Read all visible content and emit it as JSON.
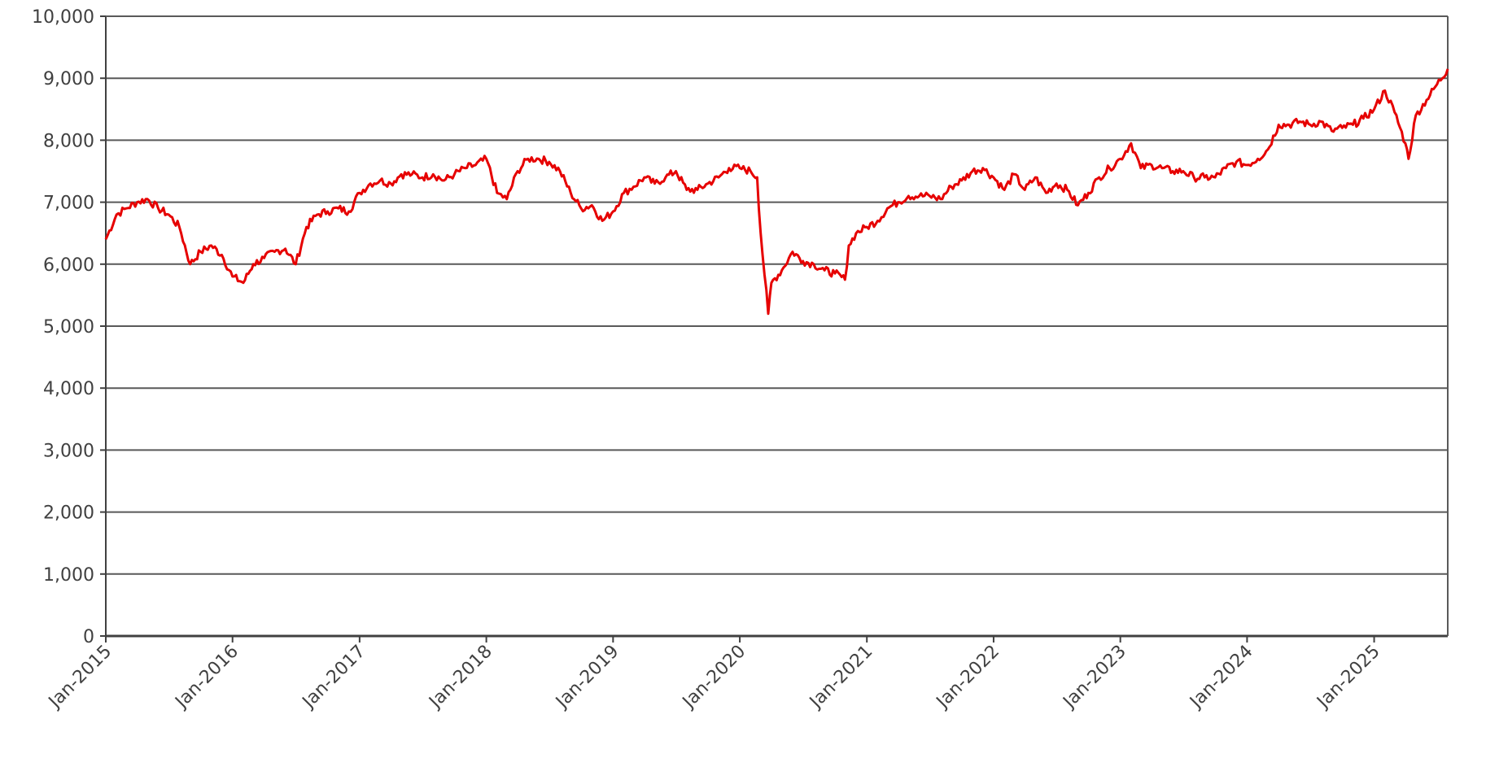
{
  "chart_data": {
    "type": "line",
    "title": "",
    "xlabel": "",
    "ylabel": "",
    "ylim": [
      0,
      10000
    ],
    "xlim": [
      "2015-01-01",
      "2025-08-01"
    ],
    "grid": "horizontal",
    "legend": "none",
    "colors": {
      "line": "#e60000",
      "grid": "#595959",
      "axis": "#404040",
      "text": "#404040"
    },
    "yticks": [
      0,
      1000,
      2000,
      3000,
      4000,
      5000,
      6000,
      7000,
      8000,
      9000,
      10000
    ],
    "ytick_labels": [
      "0",
      "1,000",
      "2,000",
      "3,000",
      "4,000",
      "5,000",
      "6,000",
      "7,000",
      "8,000",
      "9,000",
      "10,000"
    ],
    "xticks": [
      "2015-01-01",
      "2016-01-01",
      "2017-01-01",
      "2018-01-01",
      "2019-01-01",
      "2020-01-01",
      "2021-01-01",
      "2022-01-01",
      "2023-01-01",
      "2024-01-01",
      "2025-01-01"
    ],
    "xtick_labels": [
      "Jan-2015",
      "Jan-2016",
      "Jan-2017",
      "Jan-2018",
      "Jan-2019",
      "Jan-2020",
      "Jan-2021",
      "Jan-2022",
      "Jan-2023",
      "Jan-2024",
      "Jan-2025"
    ],
    "series": [
      {
        "x": [
          "2015-01-01",
          "2015-02-01",
          "2015-03-01",
          "2015-04-01",
          "2015-05-01",
          "2015-06-01",
          "2015-07-01",
          "2015-08-01",
          "2015-09-01",
          "2015-10-01",
          "2015-11-01",
          "2015-12-01",
          "2016-01-01",
          "2016-02-01",
          "2016-03-01",
          "2016-04-01",
          "2016-05-01",
          "2016-06-01",
          "2016-07-01",
          "2016-08-01",
          "2016-09-01",
          "2016-10-01",
          "2016-11-01",
          "2016-12-01",
          "2017-01-01",
          "2017-02-01",
          "2017-03-01",
          "2017-04-01",
          "2017-05-01",
          "2017-06-01",
          "2017-07-01",
          "2017-08-01",
          "2017-09-01",
          "2017-10-01",
          "2017-11-01",
          "2017-12-01",
          "2018-01-01",
          "2018-02-01",
          "2018-03-01",
          "2018-04-01",
          "2018-05-01",
          "2018-06-01",
          "2018-07-01",
          "2018-08-01",
          "2018-09-01",
          "2018-10-01",
          "2018-11-01",
          "2018-12-01",
          "2019-01-01",
          "2019-02-01",
          "2019-03-01",
          "2019-04-01",
          "2019-05-01",
          "2019-06-01",
          "2019-07-01",
          "2019-08-01",
          "2019-09-01",
          "2019-10-01",
          "2019-11-01",
          "2019-12-01",
          "2020-01-01",
          "2020-02-01",
          "2020-02-20",
          "2020-03-01",
          "2020-03-23",
          "2020-04-01",
          "2020-05-01",
          "2020-06-01",
          "2020-07-01",
          "2020-08-01",
          "2020-09-01",
          "2020-10-01",
          "2020-10-30",
          "2020-11-10",
          "2020-12-01",
          "2021-01-01",
          "2021-02-01",
          "2021-03-01",
          "2021-04-01",
          "2021-05-01",
          "2021-06-01",
          "2021-07-01",
          "2021-08-01",
          "2021-09-01",
          "2021-10-01",
          "2021-11-01",
          "2021-12-01",
          "2022-01-01",
          "2022-02-01",
          "2022-03-01",
          "2022-04-01",
          "2022-05-01",
          "2022-06-01",
          "2022-07-01",
          "2022-08-01",
          "2022-09-01",
          "2022-10-01",
          "2022-11-01",
          "2022-12-01",
          "2023-01-01",
          "2023-02-01",
          "2023-03-01",
          "2023-04-01",
          "2023-05-01",
          "2023-06-01",
          "2023-07-01",
          "2023-08-01",
          "2023-09-01",
          "2023-10-01",
          "2023-11-01",
          "2023-12-01",
          "2024-01-01",
          "2024-02-01",
          "2024-03-01",
          "2024-04-01",
          "2024-05-01",
          "2024-06-01",
          "2024-07-01",
          "2024-08-01",
          "2024-09-01",
          "2024-10-01",
          "2024-11-01",
          "2024-12-01",
          "2025-01-01",
          "2025-02-01",
          "2025-03-01",
          "2025-04-01",
          "2025-04-10",
          "2025-05-01",
          "2025-06-01",
          "2025-07-01",
          "2025-08-01"
        ],
        "values": [
          6400,
          6800,
          6900,
          7000,
          7050,
          6900,
          6800,
          6600,
          6000,
          6200,
          6300,
          6150,
          5800,
          5700,
          6000,
          6100,
          6200,
          6250,
          6000,
          6600,
          6800,
          6850,
          6900,
          6850,
          7150,
          7300,
          7350,
          7300,
          7450,
          7450,
          7400,
          7450,
          7350,
          7450,
          7550,
          7600,
          7700,
          7150,
          7050,
          7500,
          7700,
          7700,
          7650,
          7500,
          7150,
          6900,
          6950,
          6700,
          6850,
          7150,
          7250,
          7400,
          7300,
          7400,
          7500,
          7200,
          7200,
          7300,
          7400,
          7550,
          7550,
          7500,
          7400,
          6500,
          5200,
          5700,
          5900,
          6200,
          6050,
          6000,
          5900,
          5850,
          5750,
          6300,
          6500,
          6600,
          6700,
          6900,
          7000,
          7100,
          7100,
          7100,
          7050,
          7250,
          7350,
          7500,
          7550,
          7400,
          7200,
          7450,
          7200,
          7400,
          7150,
          7300,
          7200,
          6950,
          7150,
          7400,
          7550,
          7700,
          7950,
          7550,
          7600,
          7550,
          7500,
          7500,
          7400,
          7400,
          7400,
          7550,
          7650,
          7600,
          7700,
          7850,
          8250,
          8250,
          8300,
          8250,
          8300,
          8150,
          8200,
          8250,
          8350,
          8500,
          8800,
          8450,
          7950,
          7700,
          8400,
          8650,
          8900,
          9150
        ]
      }
    ]
  }
}
